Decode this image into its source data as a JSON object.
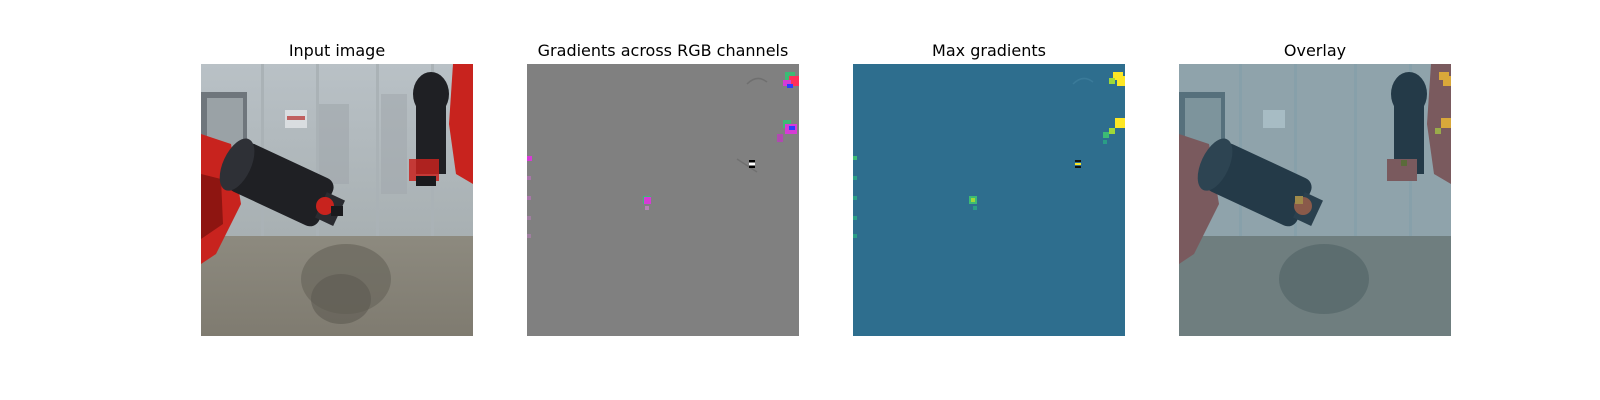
{
  "panels": [
    {
      "title": "Input image"
    },
    {
      "title": "Gradients across RGB channels"
    },
    {
      "title": "Max gradients"
    },
    {
      "title": "Overlay"
    }
  ],
  "colors": {
    "gradient_gray": "#808080",
    "max_gradient_background": "#2e6e8e",
    "highlight_yellow": "#fde725",
    "highlight_green": "#3cbb75",
    "highlight_magenta": "#d63bd6",
    "robot_red": "#c8231e"
  }
}
